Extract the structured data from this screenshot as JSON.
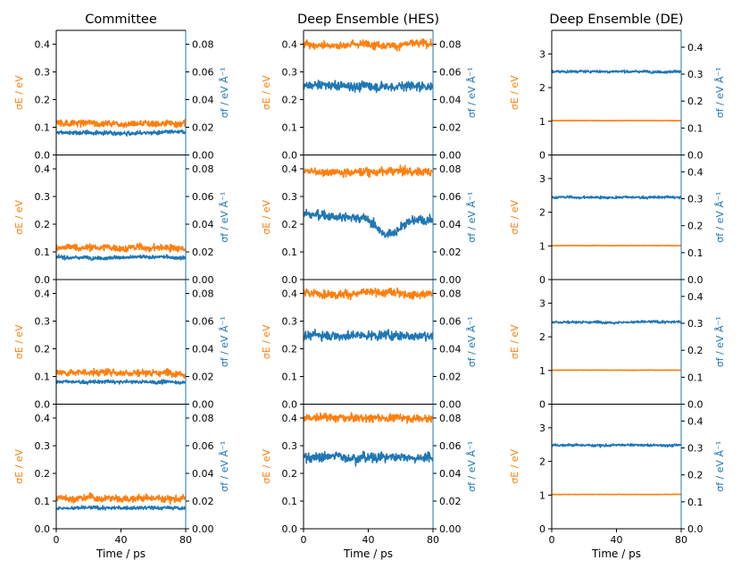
{
  "colors": {
    "energy": "#ff7f0e",
    "force": "#1f77b4",
    "axis": "#000000"
  },
  "chart_data": {
    "type": "line",
    "columns": [
      {
        "title": "Committee",
        "left_ylim": [
          0,
          0.45
        ],
        "left_ticks": [
          "0.0",
          "0.1",
          "0.2",
          "0.3",
          "0.4"
        ],
        "left_tick_values": [
          0,
          0.1,
          0.2,
          0.3,
          0.4
        ],
        "right_ylim": [
          0,
          0.09
        ],
        "right_ticks": [
          "0.00",
          "0.02",
          "0.04",
          "0.06",
          "0.08"
        ],
        "right_tick_values": [
          0,
          0.02,
          0.04,
          0.06,
          0.08
        ]
      },
      {
        "title": "Deep Ensemble (HES)",
        "left_ylim": [
          0,
          0.45
        ],
        "left_ticks": [
          "0.0",
          "0.1",
          "0.2",
          "0.3",
          "0.4"
        ],
        "left_tick_values": [
          0,
          0.1,
          0.2,
          0.3,
          0.4
        ],
        "right_ylim": [
          0,
          0.09
        ],
        "right_ticks": [
          "0.00",
          "0.02",
          "0.04",
          "0.06",
          "0.08"
        ],
        "right_tick_values": [
          0,
          0.02,
          0.04,
          0.06,
          0.08
        ]
      },
      {
        "title": "Deep Ensemble (DE)",
        "left_ylim": [
          0,
          3.7
        ],
        "left_ticks": [
          "0",
          "1",
          "2",
          "3"
        ],
        "left_tick_values": [
          0,
          1,
          2,
          3
        ],
        "right_ylim": [
          0,
          0.4625
        ],
        "right_ticks": [
          "0.0",
          "0.1",
          "0.2",
          "0.3",
          "0.4"
        ],
        "right_tick_values": [
          0,
          0.1,
          0.2,
          0.3,
          0.4
        ]
      }
    ],
    "xlim": [
      0,
      80
    ],
    "x_ticks": [
      "0",
      "40",
      "80"
    ],
    "x_tick_values": [
      0,
      40,
      80
    ],
    "xlabel": "Time / ps",
    "left_ylabel": "σE / eV",
    "right_ylabel": "σf / eV Å⁻¹",
    "series": [
      {
        "name": "σE",
        "axis": "left",
        "color": "#ff7f0e"
      },
      {
        "name": "σf",
        "axis": "right",
        "color": "#1f77b4"
      }
    ],
    "panels": [
      {
        "column": 0,
        "row": 0,
        "energy": {
          "mean": 0.115,
          "noise": 0.022
        },
        "force": {
          "mean": 0.016,
          "noise": 0.0025
        }
      },
      {
        "column": 0,
        "row": 1,
        "energy": {
          "mean": 0.115,
          "noise": 0.022
        },
        "force": {
          "mean": 0.016,
          "noise": 0.0022
        }
      },
      {
        "column": 0,
        "row": 2,
        "energy": {
          "mean": 0.115,
          "noise": 0.022
        },
        "force": {
          "mean": 0.016,
          "noise": 0.0022
        }
      },
      {
        "column": 0,
        "row": 3,
        "energy": {
          "mean": 0.11,
          "noise": 0.022
        },
        "force": {
          "mean": 0.015,
          "noise": 0.0022
        }
      },
      {
        "column": 1,
        "row": 0,
        "energy": {
          "mean": 0.4,
          "noise": 0.025
        },
        "force": {
          "mean": 0.05,
          "noise": 0.006
        }
      },
      {
        "column": 1,
        "row": 1,
        "energy": {
          "mean": 0.39,
          "noise": 0.025
        },
        "force": {
          "mean": 0.047,
          "noise": 0.006
        }
      },
      {
        "column": 1,
        "row": 2,
        "energy": {
          "mean": 0.4,
          "noise": 0.025
        },
        "force": {
          "mean": 0.05,
          "noise": 0.006
        }
      },
      {
        "column": 1,
        "row": 3,
        "energy": {
          "mean": 0.4,
          "noise": 0.025
        },
        "force": {
          "mean": 0.052,
          "noise": 0.006
        }
      },
      {
        "column": 2,
        "row": 0,
        "energy": {
          "mean": 1.02,
          "noise": 0.01
        },
        "force": {
          "mean": 0.31,
          "noise": 0.008
        }
      },
      {
        "column": 2,
        "row": 1,
        "energy": {
          "mean": 1.01,
          "noise": 0.01
        },
        "force": {
          "mean": 0.305,
          "noise": 0.008
        }
      },
      {
        "column": 2,
        "row": 2,
        "energy": {
          "mean": 1.01,
          "noise": 0.01
        },
        "force": {
          "mean": 0.305,
          "noise": 0.008
        }
      },
      {
        "column": 2,
        "row": 3,
        "energy": {
          "mean": 1.02,
          "noise": 0.01
        },
        "force": {
          "mean": 0.31,
          "noise": 0.008
        }
      }
    ]
  }
}
